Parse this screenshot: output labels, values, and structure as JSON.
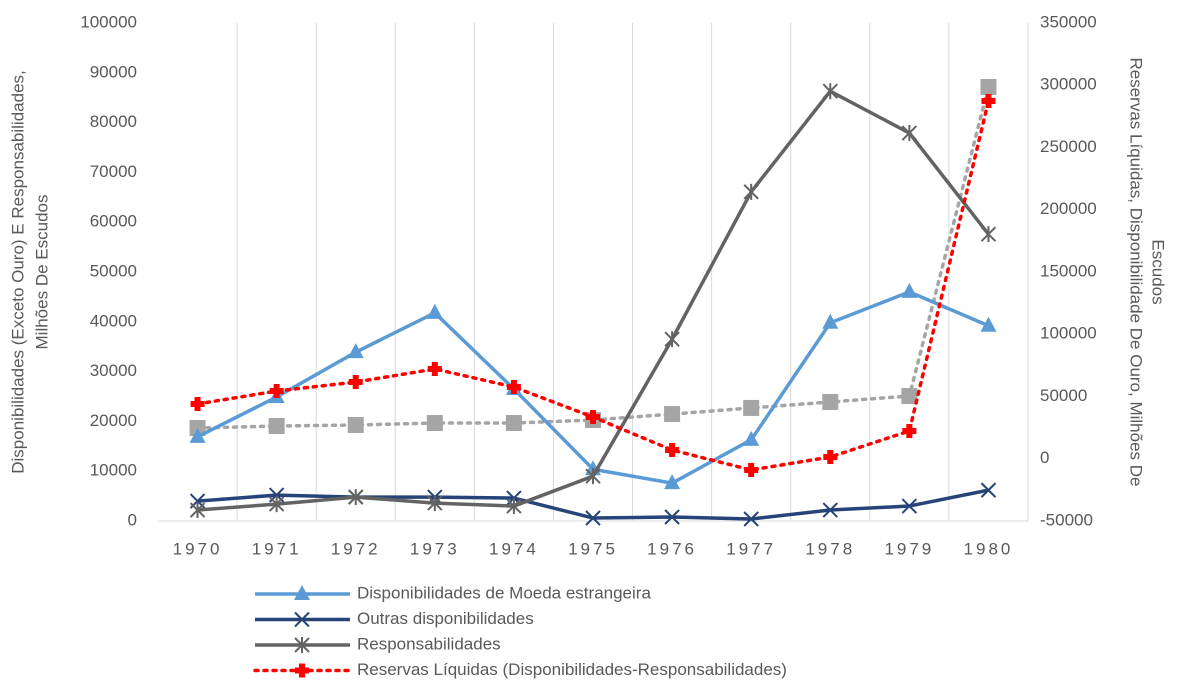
{
  "chart_data": {
    "type": "line",
    "categories": [
      "1970",
      "1971",
      "1972",
      "1973",
      "1974",
      "1975",
      "1976",
      "1977",
      "1978",
      "1979",
      "1980"
    ],
    "ylabel": [
      "Disponibilidades  (Exceto Ouro) E Responsabilidades,",
      "Milhões De Escudos"
    ],
    "y2label": [
      "Reservas Líquidas, Disponibilidade De Ouro, Milhões De",
      "Escudos"
    ],
    "ylim": [
      0,
      100000
    ],
    "yticks": [
      0,
      10000,
      20000,
      30000,
      40000,
      50000,
      60000,
      70000,
      80000,
      90000,
      100000
    ],
    "y2lim": [
      -50000,
      350000
    ],
    "y2ticks": [
      -50000,
      0,
      50000,
      100000,
      150000,
      200000,
      250000,
      300000,
      350000
    ],
    "grid": "x",
    "series": [
      {
        "values": [
          24700,
          26300,
          27100,
          28700,
          28700,
          31100,
          35900,
          40800,
          45600,
          50400,
          298600
        ],
        "color": "#a5a5a5",
        "axis": "y2",
        "dash": true,
        "marker": "square"
      },
      {
        "name": "Disponibilidades de Moeda estrangeira",
        "color": "#5b9bd5",
        "marker": "triangle",
        "values": [
          16900,
          24900,
          33900,
          41800,
          26500,
          10400,
          7600,
          16300,
          39800,
          46000,
          39200
        ]
      },
      {
        "name": "Outras disponibilidades",
        "color": "#264478",
        "marker": "x",
        "values": [
          4000,
          5200,
          4800,
          4800,
          4600,
          600,
          800,
          400,
          2200,
          3000,
          6200
        ]
      },
      {
        "name": "Responsabilidades",
        "color": "#636363",
        "marker": "star",
        "values": [
          2200,
          3400,
          4800,
          3600,
          3000,
          9000,
          36500,
          66100,
          86300,
          77900,
          57600
        ]
      },
      {
        "name": "Reservas Líquidas (Disponibilidades-Responsabilidades)",
        "color": "#ff0000",
        "axis": "y2",
        "dash": true,
        "marker": "plus",
        "values": [
          44000,
          54400,
          61600,
          72100,
          57600,
          33500,
          7000,
          -9000,
          1400,
          22300,
          287300
        ]
      }
    ]
  }
}
